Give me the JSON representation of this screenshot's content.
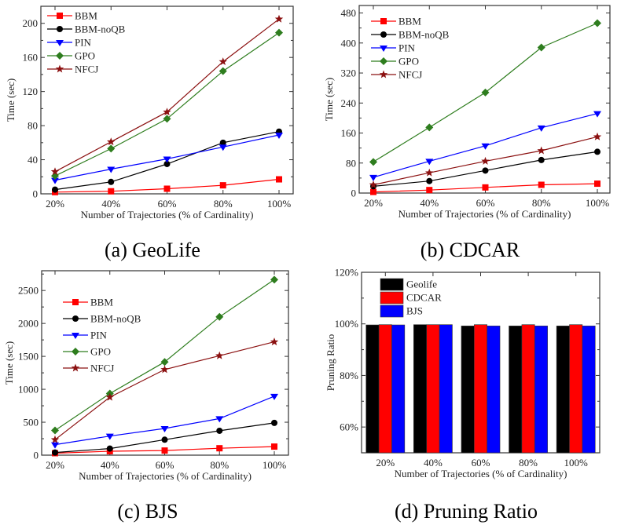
{
  "chart_data": [
    {
      "id": "a",
      "type": "line",
      "caption": "(a)  GeoLife",
      "title": "",
      "xlabel": "Number of Trajectories (% of Cardinality)",
      "ylabel": "Time (sec)",
      "categories": [
        "20%",
        "40%",
        "60%",
        "80%",
        "100%"
      ],
      "ylim": [
        0,
        220
      ],
      "yticks": [
        0,
        40,
        80,
        120,
        160,
        200
      ],
      "legend_position": "top-left",
      "series": [
        {
          "name": "BBM",
          "color": "#ff0000",
          "marker": "square",
          "values": [
            2,
            3,
            6,
            10,
            17
          ]
        },
        {
          "name": "BBM-noQB",
          "color": "#000000",
          "marker": "circle",
          "values": [
            5,
            14,
            35,
            60,
            73
          ]
        },
        {
          "name": "PIN",
          "color": "#0000ff",
          "marker": "triangle-down",
          "values": [
            16,
            29,
            41,
            55,
            69
          ]
        },
        {
          "name": "GPO",
          "color": "#2e7d1e",
          "marker": "diamond",
          "values": [
            21,
            53,
            88,
            144,
            189
          ]
        },
        {
          "name": "NFCJ",
          "color": "#8b1010",
          "marker": "star",
          "values": [
            26,
            61,
            96,
            155,
            205
          ]
        }
      ]
    },
    {
      "id": "b",
      "type": "line",
      "caption": "(b)  CDCAR",
      "title": "",
      "xlabel": "Number of Trajectories (% of Cardinality)",
      "ylabel": "Time (sec)",
      "categories": [
        "20%",
        "40%",
        "60%",
        "80%",
        "100%"
      ],
      "ylim": [
        0,
        500
      ],
      "yticks": [
        0,
        80,
        160,
        240,
        320,
        400,
        480
      ],
      "legend_position": "top-left",
      "series": [
        {
          "name": "BBM",
          "color": "#ff0000",
          "marker": "square",
          "values": [
            3,
            8,
            15,
            22,
            25
          ]
        },
        {
          "name": "BBM-noQB",
          "color": "#000000",
          "marker": "circle",
          "values": [
            18,
            32,
            60,
            88,
            110
          ]
        },
        {
          "name": "PIN",
          "color": "#0000ff",
          "marker": "triangle-down",
          "values": [
            42,
            85,
            126,
            174,
            212
          ]
        },
        {
          "name": "GPO",
          "color": "#2e7d1e",
          "marker": "diamond",
          "values": [
            83,
            175,
            268,
            388,
            453
          ]
        },
        {
          "name": "NFCJ",
          "color": "#8b1010",
          "marker": "star",
          "values": [
            22,
            54,
            85,
            113,
            150
          ]
        }
      ]
    },
    {
      "id": "c",
      "type": "line",
      "caption": "(c)  BJS",
      "title": "",
      "xlabel": "Number of Trajectories (% of Cardinality)",
      "ylabel": "Time (sec)",
      "categories": [
        "20%",
        "40%",
        "60%",
        "80%",
        "100%"
      ],
      "ylim": [
        0,
        2800
      ],
      "yticks": [
        0,
        500,
        1000,
        1500,
        2000,
        2500
      ],
      "legend_position": "upper-left",
      "series": [
        {
          "name": "BBM",
          "color": "#ff0000",
          "marker": "square",
          "values": [
            30,
            60,
            70,
            105,
            130
          ]
        },
        {
          "name": "BBM-noQB",
          "color": "#000000",
          "marker": "circle",
          "values": [
            40,
            100,
            235,
            370,
            490
          ]
        },
        {
          "name": "PIN",
          "color": "#0000ff",
          "marker": "triangle-down",
          "values": [
            160,
            290,
            405,
            555,
            895
          ]
        },
        {
          "name": "GPO",
          "color": "#2e7d1e",
          "marker": "diamond",
          "values": [
            375,
            935,
            1415,
            2100,
            2665
          ]
        },
        {
          "name": "NFCJ",
          "color": "#8b1010",
          "marker": "star",
          "values": [
            235,
            880,
            1300,
            1510,
            1720
          ]
        }
      ]
    },
    {
      "id": "d",
      "type": "bar",
      "caption": "(d)  Pruning Ratio",
      "title": "",
      "xlabel": "Number of Trajectories (% of Cardinality)",
      "ylabel": "Pruning Ratio",
      "categories": [
        "20%",
        "40%",
        "60%",
        "80%",
        "100%"
      ],
      "ylim": [
        50,
        120
      ],
      "yticks": [
        60,
        80,
        100,
        120
      ],
      "ytick_labels": [
        "60%",
        "80%",
        "100%",
        "120%"
      ],
      "legend_position": "top-left",
      "series": [
        {
          "name": "Geolife",
          "color": "#000000",
          "values": [
            99.6,
            99.7,
            99.2,
            99.2,
            99.2
          ]
        },
        {
          "name": "CDCAR",
          "color": "#ff0000",
          "values": [
            99.7,
            99.7,
            99.7,
            99.7,
            99.7
          ]
        },
        {
          "name": "BJS",
          "color": "#0000ff",
          "values": [
            99.6,
            99.7,
            99.2,
            99.2,
            99.2
          ]
        }
      ]
    }
  ]
}
